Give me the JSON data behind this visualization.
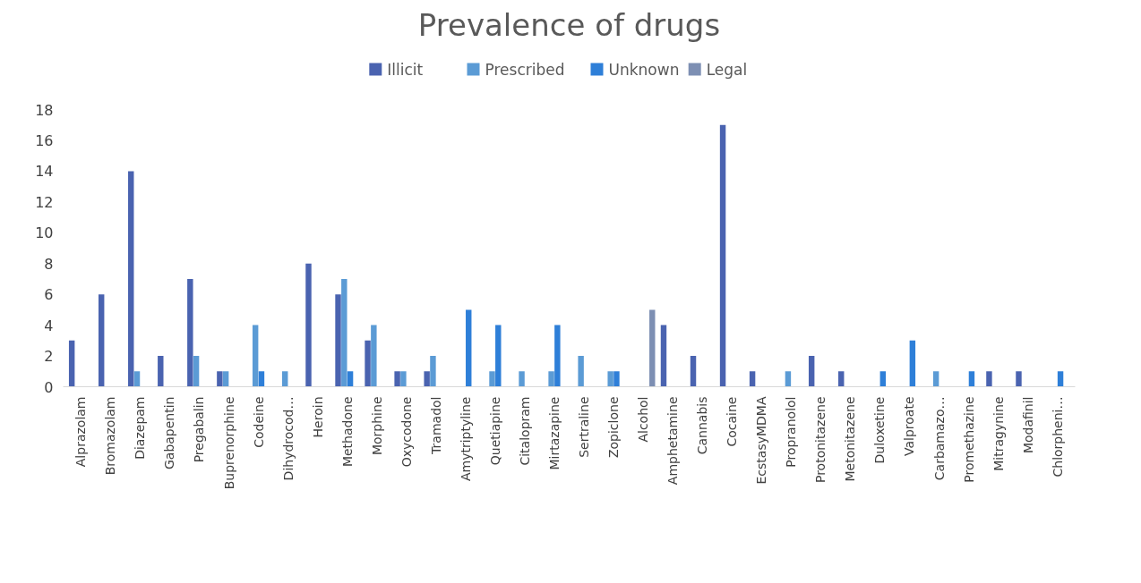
{
  "chart_data": {
    "type": "bar",
    "title": "Prevalence of drugs",
    "categories": [
      "Alprazolam",
      "Bromazolam",
      "Diazepam",
      "Gabapentin",
      "Pregabalin",
      "Buprenorphine",
      "Codeine",
      "Dihydrocod…",
      "Heroin",
      "Methadone",
      "Morphine",
      "Oxycodone",
      "Tramadol",
      "Amytriptyline",
      "Quetiapine",
      "Citalopram",
      "Mirtazapine",
      "Sertraline",
      "Zopiclone",
      "Alcohol",
      "Amphetamine",
      "Cannabis",
      "Cocaine",
      "EcstasyMDMA",
      "Propranolol",
      "Protonitazene",
      "Metonitazene",
      "Duloxetine",
      "Valproate",
      "Carbamazo…",
      "Promethazine",
      "Mitragynine",
      "Modafinil",
      "Chlorpheni…"
    ],
    "series": [
      {
        "name": "Illicit",
        "color": "#4a63b0",
        "values": [
          3,
          6,
          14,
          2,
          7,
          1,
          null,
          null,
          8,
          6,
          3,
          1,
          1,
          null,
          null,
          null,
          null,
          null,
          null,
          null,
          4,
          2,
          17,
          1,
          null,
          2,
          1,
          null,
          null,
          null,
          null,
          1,
          1,
          null
        ]
      },
      {
        "name": "Prescribed",
        "color": "#5b9bd5",
        "values": [
          null,
          null,
          1,
          null,
          2,
          1,
          4,
          1,
          null,
          7,
          4,
          1,
          2,
          null,
          1,
          1,
          1,
          2,
          1,
          null,
          null,
          null,
          null,
          null,
          1,
          null,
          null,
          null,
          null,
          1,
          null,
          null,
          null,
          null
        ]
      },
      {
        "name": "Unknown",
        "color": "#2e7fd8",
        "values": [
          null,
          null,
          null,
          null,
          null,
          null,
          1,
          null,
          null,
          1,
          null,
          null,
          null,
          5,
          4,
          null,
          4,
          null,
          1,
          null,
          null,
          null,
          null,
          null,
          null,
          null,
          null,
          1,
          3,
          null,
          1,
          null,
          null,
          1
        ]
      },
      {
        "name": "Legal",
        "color": "#7d8fb3",
        "values": [
          null,
          null,
          null,
          null,
          null,
          null,
          null,
          null,
          null,
          null,
          null,
          null,
          null,
          null,
          null,
          null,
          null,
          null,
          null,
          5,
          null,
          null,
          null,
          null,
          null,
          null,
          null,
          null,
          null,
          null,
          null,
          null,
          null,
          null
        ]
      }
    ],
    "ylim": [
      0,
      18
    ],
    "yticks": [
      0,
      2,
      4,
      6,
      8,
      10,
      12,
      14,
      16,
      18
    ],
    "grid": false,
    "legend": "top"
  }
}
